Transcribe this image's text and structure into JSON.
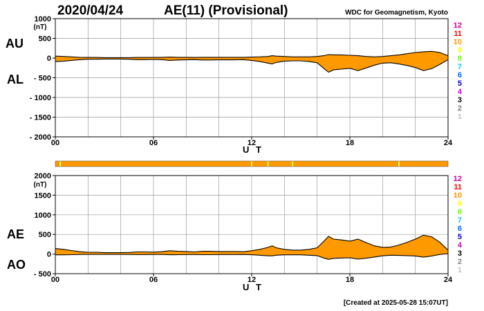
{
  "header": {
    "date": "2020/04/24",
    "title": "AE(11) (Provisional)",
    "organization": "WDC for Geomagnetism, Kyoto"
  },
  "footer": {
    "created": "[Created at 2025-05-28 15:07UT]"
  },
  "colors": {
    "fill": "#FF9900",
    "line": "#000000",
    "grid": "#9a9a9a",
    "bar": "#FF9900",
    "bar_marks": "#FFFF66"
  },
  "station_legend": [
    {
      "label": "12",
      "color": "#CC0099"
    },
    {
      "label": "11",
      "color": "#FF0000"
    },
    {
      "label": "10",
      "color": "#FF9900"
    },
    {
      "label": "9",
      "color": "#FFFF00"
    },
    {
      "label": "8",
      "color": "#66FF00"
    },
    {
      "label": "7",
      "color": "#00CCFF"
    },
    {
      "label": "6",
      "color": "#0066FF"
    },
    {
      "label": "5",
      "color": "#0000CC"
    },
    {
      "label": "4",
      "color": "#CC00CC"
    },
    {
      "label": "3",
      "color": "#000000"
    },
    {
      "label": "2",
      "color": "#808080"
    },
    {
      "label": "1",
      "color": "#C0C0C0"
    }
  ],
  "availability_bar": {
    "marks_ut": [
      0.3,
      12.0,
      13.0,
      14.5,
      21.0
    ]
  },
  "chart_data": [
    {
      "type": "area",
      "panel": "AU/AL",
      "label_upper": "AU",
      "label_lower": "AL",
      "ylabel": "(nT)",
      "xlabel": "U T",
      "xlim": [
        0,
        24
      ],
      "ylim": [
        -2000,
        1000
      ],
      "yticks": [
        1000,
        500,
        0,
        -500,
        -1000,
        -1500,
        -2000
      ],
      "ytick_labels": [
        "1000",
        "500",
        "0",
        "- 500",
        "- 1000",
        "- 1500",
        "- 2000"
      ],
      "xticks": [
        0,
        6,
        12,
        18,
        24
      ],
      "xtick_labels": [
        "00",
        "06",
        "12",
        "18",
        "24"
      ],
      "grid": true,
      "x": [
        0,
        0.5,
        1,
        1.5,
        2,
        2.5,
        3,
        3.5,
        4,
        4.5,
        5,
        5.5,
        6,
        6.5,
        7,
        7.5,
        8,
        8.5,
        9,
        9.5,
        10,
        10.5,
        11,
        11.5,
        12,
        12.5,
        13,
        13.25,
        13.5,
        14,
        14.5,
        15,
        15.5,
        16,
        16.4,
        16.7,
        17,
        17.5,
        18,
        18.5,
        19,
        19.5,
        20,
        20.5,
        21,
        21.5,
        22,
        22.5,
        23,
        23.5,
        24
      ],
      "series": [
        {
          "name": "AU",
          "values": [
            50,
            40,
            30,
            20,
            15,
            15,
            10,
            10,
            10,
            10,
            15,
            15,
            15,
            20,
            25,
            20,
            20,
            15,
            20,
            20,
            20,
            20,
            20,
            20,
            25,
            30,
            40,
            60,
            50,
            40,
            30,
            30,
            30,
            40,
            60,
            90,
            80,
            80,
            70,
            60,
            40,
            30,
            40,
            60,
            80,
            110,
            140,
            160,
            170,
            140,
            60
          ]
        },
        {
          "name": "AL",
          "values": [
            -90,
            -80,
            -60,
            -40,
            -30,
            -30,
            -25,
            -25,
            -25,
            -30,
            -40,
            -40,
            -35,
            -40,
            -60,
            -50,
            -45,
            -40,
            -50,
            -50,
            -45,
            -45,
            -45,
            -40,
            -60,
            -90,
            -130,
            -150,
            -110,
            -80,
            -70,
            -70,
            -90,
            -120,
            -260,
            -360,
            -300,
            -280,
            -260,
            -320,
            -250,
            -180,
            -130,
            -120,
            -150,
            -190,
            -240,
            -320,
            -270,
            -160,
            -40
          ]
        }
      ]
    },
    {
      "type": "area",
      "panel": "AE/AO",
      "label_upper": "AE",
      "label_lower": "AO",
      "ylabel": "(nT)",
      "xlabel": "U T",
      "xlim": [
        0,
        24
      ],
      "ylim": [
        -500,
        2000
      ],
      "yticks": [
        2000,
        1500,
        1000,
        500,
        0,
        -500
      ],
      "ytick_labels": [
        "2000",
        "1500",
        "1000",
        "500",
        "0",
        "- 500"
      ],
      "xticks": [
        0,
        6,
        12,
        18,
        24
      ],
      "xtick_labels": [
        "00",
        "06",
        "12",
        "18",
        "24"
      ],
      "grid": true,
      "x": [
        0,
        0.5,
        1,
        1.5,
        2,
        2.5,
        3,
        3.5,
        4,
        4.5,
        5,
        5.5,
        6,
        6.5,
        7,
        7.5,
        8,
        8.5,
        9,
        9.5,
        10,
        10.5,
        11,
        11.5,
        12,
        12.5,
        13,
        13.25,
        13.5,
        14,
        14.5,
        15,
        15.5,
        16,
        16.4,
        16.7,
        17,
        17.5,
        18,
        18.5,
        19,
        19.5,
        20,
        20.5,
        21,
        21.5,
        22,
        22.5,
        23,
        23.5,
        24
      ],
      "series": [
        {
          "name": "AE",
          "values": [
            140,
            120,
            90,
            60,
            45,
            45,
            35,
            35,
            35,
            40,
            55,
            55,
            50,
            60,
            85,
            70,
            65,
            55,
            70,
            70,
            65,
            65,
            65,
            60,
            85,
            120,
            170,
            210,
            160,
            120,
            100,
            100,
            120,
            160,
            320,
            450,
            380,
            360,
            330,
            380,
            290,
            210,
            170,
            180,
            230,
            300,
            380,
            480,
            440,
            300,
            100
          ]
        },
        {
          "name": "AO",
          "values": [
            -20,
            -20,
            -15,
            -10,
            -8,
            -8,
            -8,
            -8,
            -8,
            -10,
            -12,
            -12,
            -10,
            -10,
            -18,
            -15,
            -12,
            -12,
            -15,
            -15,
            -12,
            -12,
            -12,
            -10,
            -18,
            -30,
            -45,
            -45,
            -30,
            -20,
            -20,
            -20,
            -30,
            -40,
            -100,
            -135,
            -110,
            -100,
            -95,
            -130,
            -105,
            -75,
            -45,
            -30,
            -35,
            -40,
            -50,
            -80,
            -50,
            -10,
            10
          ]
        }
      ]
    }
  ]
}
